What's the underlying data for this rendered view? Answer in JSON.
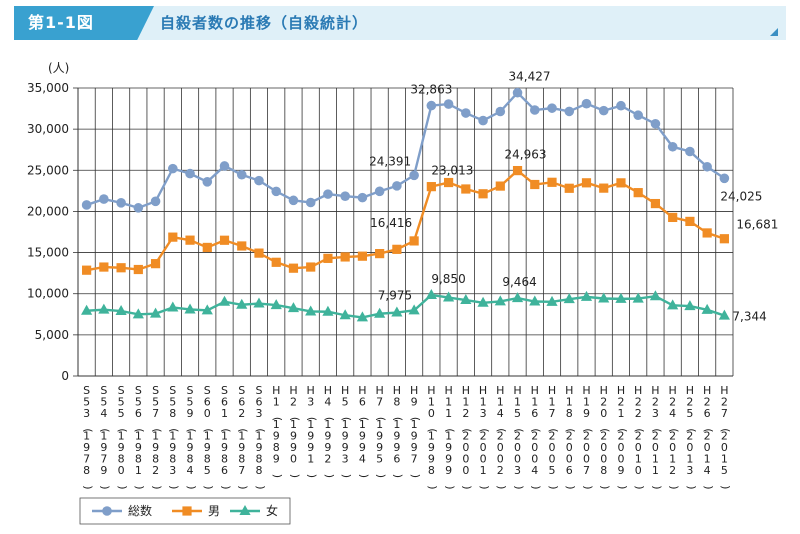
{
  "header": {
    "figure_label": "第1-1図",
    "title": "自殺者数の推移（自殺統計）"
  },
  "chart_data": {
    "type": "line",
    "unit_label": "(人)",
    "ylim": [
      0,
      35000
    ],
    "yticks": [
      "0",
      "5,000",
      "10,000",
      "15,000",
      "20,000",
      "25,000",
      "30,000",
      "35,000"
    ],
    "ytick_values": [
      0,
      5000,
      10000,
      15000,
      20000,
      25000,
      30000,
      35000
    ],
    "grid": true,
    "legend_position": "bottom-left",
    "categories": [
      "S53(1978)",
      "S54(1979)",
      "S55(1980)",
      "S56(1981)",
      "S57(1982)",
      "S58(1983)",
      "S59(1984)",
      "S60(1985)",
      "S61(1986)",
      "S62(1987)",
      "S63(1988)",
      "H1(1989)",
      "H2(1990)",
      "H3(1991)",
      "H4(1992)",
      "H5(1993)",
      "H6(1994)",
      "H7(1995)",
      "H8(1996)",
      "H9(1997)",
      "H10(1998)",
      "H11(1999)",
      "H12(2000)",
      "H13(2001)",
      "H14(2002)",
      "H15(2003)",
      "H16(2004)",
      "H17(2005)",
      "H18(2006)",
      "H19(2007)",
      "H20(2008)",
      "H21(2009)",
      "H22(2010)",
      "H23(2011)",
      "H24(2012)",
      "H25(2013)",
      "H26(2014)",
      "H27(2015)"
    ],
    "series": [
      {
        "name": "総数",
        "color": "#7f9ec9",
        "marker": "circle",
        "values": [
          20788,
          21503,
          21048,
          20434,
          21228,
          25202,
          24596,
          23599,
          25524,
          24460,
          23742,
          22436,
          21346,
          21084,
          22104,
          21851,
          21679,
          22445,
          23104,
          24391,
          32863,
          33048,
          31957,
          31042,
          32143,
          34427,
          32325,
          32552,
          32155,
          33093,
          32249,
          32845,
          31690,
          30651,
          27858,
          27283,
          25427,
          24025
        ]
      },
      {
        "name": "男",
        "color": "#f08c24",
        "marker": "square",
        "values": [
          12859,
          13240,
          13155,
          12942,
          13654,
          16876,
          16508,
          15624,
          16497,
          15802,
          14934,
          13818,
          13102,
          13242,
          14296,
          14468,
          14560,
          14874,
          15393,
          16416,
          23013,
          23512,
          22727,
          22144,
          23080,
          24963,
          23272,
          23540,
          22813,
          23478,
          22831,
          23472,
          22283,
          20955,
          19273,
          18787,
          17386,
          16681
        ]
      },
      {
        "name": "女",
        "color": "#3fb39b",
        "marker": "triangle",
        "values": [
          7929,
          8063,
          7893,
          7492,
          7574,
          8326,
          8088,
          7975,
          9027,
          8658,
          8808,
          8618,
          8244,
          7842,
          7808,
          7383,
          7119,
          7571,
          7711,
          7975,
          9850,
          9536,
          9230,
          8898,
          9063,
          9464,
          9053,
          9012,
          9342,
          9615,
          9418,
          9373,
          9407,
          9696,
          8585,
          8496,
          8041,
          7344
        ]
      }
    ],
    "annotations": [
      {
        "series": 0,
        "index": 19,
        "text": "24,391",
        "anchor": "end",
        "dx": -3,
        "dy": -10
      },
      {
        "series": 0,
        "index": 20,
        "text": "32,863",
        "anchor": "middle",
        "dx": 0,
        "dy": -12
      },
      {
        "series": 0,
        "index": 25,
        "text": "34,427",
        "anchor": "middle",
        "dx": 12,
        "dy": -12
      },
      {
        "series": 0,
        "index": 37,
        "text": "24,025",
        "anchor": "start",
        "dx": -4,
        "dy": 22
      },
      {
        "series": 1,
        "index": 19,
        "text": "16,416",
        "anchor": "end",
        "dx": -2,
        "dy": -14
      },
      {
        "series": 1,
        "index": 20,
        "text": "23,013",
        "anchor": "start",
        "dx": 0,
        "dy": -12
      },
      {
        "series": 1,
        "index": 25,
        "text": "24,963",
        "anchor": "middle",
        "dx": 8,
        "dy": -12
      },
      {
        "series": 1,
        "index": 37,
        "text": "16,681",
        "anchor": "start",
        "dx": 12,
        "dy": -10
      },
      {
        "series": 2,
        "index": 19,
        "text": "7,975",
        "anchor": "end",
        "dx": -2,
        "dy": -11
      },
      {
        "series": 2,
        "index": 20,
        "text": "9,850",
        "anchor": "start",
        "dx": 0,
        "dy": -12
      },
      {
        "series": 2,
        "index": 25,
        "text": "9,464",
        "anchor": "middle",
        "dx": 2,
        "dy": -12
      },
      {
        "series": 2,
        "index": 37,
        "text": "7,344",
        "anchor": "start",
        "dx": 8,
        "dy": 5
      }
    ]
  }
}
